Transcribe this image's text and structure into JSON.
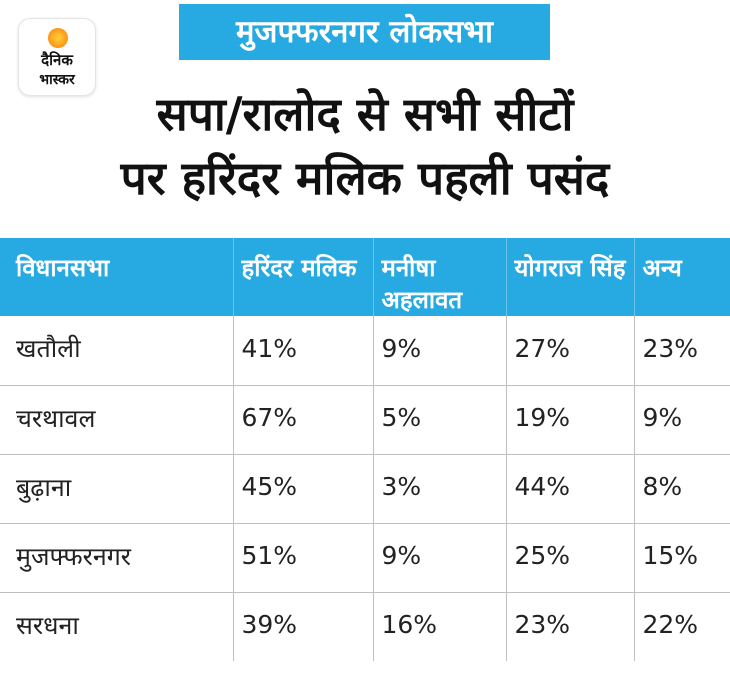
{
  "logo": {
    "line1": "दैनिक",
    "line2": "भास्कर"
  },
  "banner": "मुजफ्फरनगर लोकसभा",
  "headline": {
    "line1": "सपा/रालोद से सभी सीटों",
    "line2": "पर हरिंदर मलिक पहली पसंद"
  },
  "colors": {
    "accent": "#27a9e1",
    "text": "#111111",
    "grid": "#bfbfbf"
  },
  "chart_data": {
    "type": "table",
    "columns": [
      "विधानसभा",
      "हरिंदर मलिक",
      "मनीषा अहलावत",
      "योगराज सिंह",
      "अन्य"
    ],
    "rows": [
      [
        "खतौली",
        "41%",
        "9%",
        "27%",
        "23%"
      ],
      [
        "चरथावल",
        "67%",
        "5%",
        "19%",
        "9%"
      ],
      [
        "बुढ़ाना",
        "45%",
        "3%",
        "44%",
        "8%"
      ],
      [
        "मुजफ्फरनगर",
        "51%",
        "9%",
        "25%",
        "15%"
      ],
      [
        "सरधना",
        "39%",
        "16%",
        "23%",
        "22%"
      ]
    ]
  }
}
